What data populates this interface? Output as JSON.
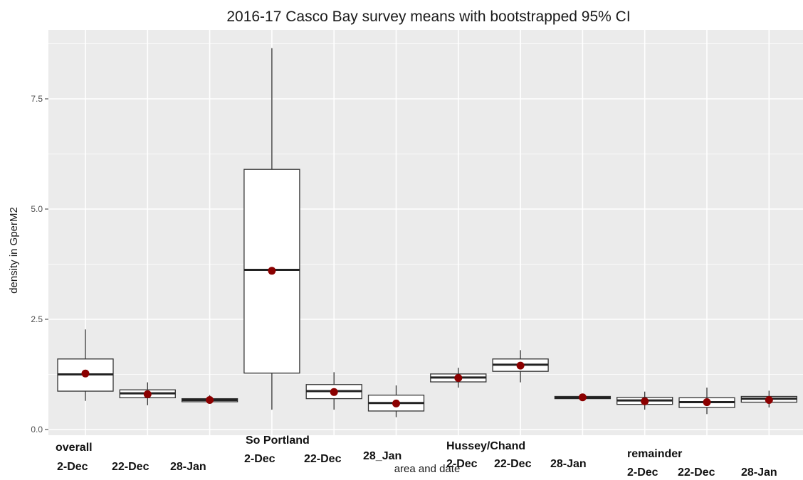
{
  "chart_data": {
    "type": "boxplot",
    "title": "2016-17 Casco Bay survey means with bootstrapped 95% CI",
    "xlabel": "area and date",
    "ylabel": "density in GperM2",
    "ylim": [
      0,
      8.8
    ],
    "yticks": [
      "0.0",
      "2.5",
      "5.0",
      "7.5"
    ],
    "ytick_values": [
      0,
      2.5,
      5,
      7.5
    ],
    "grid": true,
    "colors": {
      "panel": "#ebebeb",
      "grid": "#ffffff",
      "box_fill": "#ffffff",
      "box_stroke": "#333333",
      "mean_point": "#8b0000"
    },
    "groups": [
      {
        "name": "overall",
        "dates": [
          "2-Dec",
          "22-Dec",
          "28-Jan"
        ]
      },
      {
        "name": "So Portland",
        "dates": [
          "2-Dec",
          "22-Dec",
          "28_Jan"
        ]
      },
      {
        "name": "Hussey/Chand",
        "dates": [
          "2-Dec",
          "22-Dec",
          "28-Jan"
        ]
      },
      {
        "name": "remainder",
        "dates": [
          "2-Dec",
          "22-Dec",
          "28-Jan"
        ]
      }
    ],
    "series": [
      {
        "x": 1,
        "ymin": 0.65,
        "lower": 0.87,
        "median": 1.25,
        "upper": 1.6,
        "ymax": 2.27,
        "mean": 1.27
      },
      {
        "x": 2,
        "ymin": 0.55,
        "lower": 0.72,
        "median": 0.82,
        "upper": 0.9,
        "ymax": 1.07,
        "mean": 0.8
      },
      {
        "x": 3,
        "ymin": 0.6,
        "lower": 0.63,
        "median": 0.67,
        "upper": 0.7,
        "ymax": 0.78,
        "mean": 0.67
      },
      {
        "x": 4,
        "ymin": 0.45,
        "lower": 1.28,
        "median": 3.62,
        "upper": 5.9,
        "ymax": 8.65,
        "mean": 3.6
      },
      {
        "x": 5,
        "ymin": 0.45,
        "lower": 0.7,
        "median": 0.87,
        "upper": 1.02,
        "ymax": 1.3,
        "mean": 0.85
      },
      {
        "x": 6,
        "ymin": 0.28,
        "lower": 0.42,
        "median": 0.6,
        "upper": 0.78,
        "ymax": 1.0,
        "mean": 0.59
      },
      {
        "x": 7,
        "ymin": 0.95,
        "lower": 1.08,
        "median": 1.18,
        "upper": 1.26,
        "ymax": 1.4,
        "mean": 1.17
      },
      {
        "x": 8,
        "ymin": 1.07,
        "lower": 1.32,
        "median": 1.47,
        "upper": 1.6,
        "ymax": 1.8,
        "mean": 1.45
      },
      {
        "x": 9,
        "ymin": 0.7,
        "lower": 0.7,
        "median": 0.72,
        "upper": 0.75,
        "ymax": 0.77,
        "mean": 0.73
      },
      {
        "x": 10,
        "ymin": 0.45,
        "lower": 0.57,
        "median": 0.66,
        "upper": 0.73,
        "ymax": 0.86,
        "mean": 0.64
      },
      {
        "x": 11,
        "ymin": 0.35,
        "lower": 0.5,
        "median": 0.62,
        "upper": 0.72,
        "ymax": 0.95,
        "mean": 0.62
      },
      {
        "x": 12,
        "ymin": 0.5,
        "lower": 0.62,
        "median": 0.7,
        "upper": 0.75,
        "ymax": 0.88,
        "mean": 0.67
      }
    ]
  }
}
